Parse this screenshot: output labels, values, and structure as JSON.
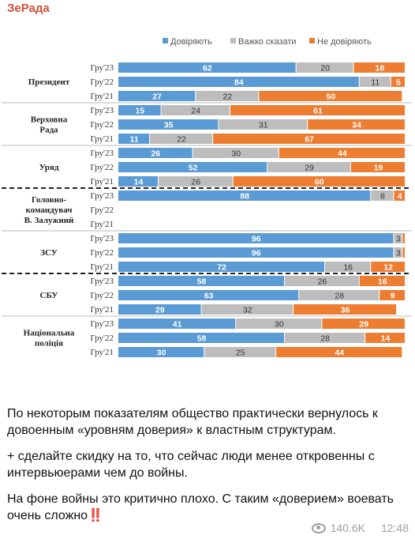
{
  "channel": "ЗеРада",
  "chart_data": {
    "type": "bar",
    "stacked": true,
    "orientation": "horizontal",
    "legend": {
      "position": "top-right",
      "items": [
        {
          "name": "Довіряють",
          "color": "#5b9bd5"
        },
        {
          "name": "Важко сказати",
          "color": "#bdbdbd"
        },
        {
          "name": "Не довіряють",
          "color": "#ed7d31"
        }
      ]
    },
    "xlim": [
      0,
      100
    ],
    "groups": [
      {
        "name": "Президент",
        "rows": [
          {
            "period": "Гру'23",
            "values": [
              62,
              20,
              18
            ]
          },
          {
            "period": "Гру'22",
            "values": [
              84,
              11,
              5
            ]
          },
          {
            "period": "Гру'21",
            "values": [
              27,
              22,
              50
            ]
          }
        ]
      },
      {
        "name": "Верховна Рада",
        "rows": [
          {
            "period": "Гру'23",
            "values": [
              15,
              24,
              61
            ]
          },
          {
            "period": "Гру'22",
            "values": [
              35,
              31,
              34
            ]
          },
          {
            "period": "Гру'21",
            "values": [
              11,
              22,
              67
            ]
          }
        ]
      },
      {
        "name": "Уряд",
        "rows": [
          {
            "period": "Гру'23",
            "values": [
              26,
              30,
              44
            ]
          },
          {
            "period": "Гру'22",
            "values": [
              52,
              29,
              19
            ]
          },
          {
            "period": "Гру'21",
            "values": [
              14,
              26,
              60
            ]
          }
        ]
      },
      {
        "name": "Головно-командувач В. Залужний",
        "rows": [
          {
            "period": "Гру'23",
            "values": [
              88,
              8,
              4
            ]
          },
          {
            "period": "Гру'22",
            "values": null
          },
          {
            "period": "Гру'21",
            "values": null
          }
        ]
      },
      {
        "name": "ЗСУ",
        "rows": [
          {
            "period": "Гру'23",
            "values": [
              96,
              3,
              1
            ]
          },
          {
            "period": "Гру'22",
            "values": [
              96,
              3,
              1
            ]
          },
          {
            "period": "Гру'21",
            "values": [
              72,
              16,
              12
            ]
          }
        ]
      },
      {
        "name": "СБУ",
        "rows": [
          {
            "period": "Гру'23",
            "values": [
              58,
              26,
              16
            ]
          },
          {
            "period": "Гру'22",
            "values": [
              63,
              28,
              9
            ]
          },
          {
            "period": "Гру'21",
            "values": [
              29,
              32,
              36
            ]
          }
        ]
      },
      {
        "name": "Національна поліція",
        "rows": [
          {
            "period": "Гру'23",
            "values": [
              41,
              30,
              29
            ]
          },
          {
            "period": "Гру'22",
            "values": [
              58,
              28,
              14
            ]
          },
          {
            "period": "Гру'21",
            "values": [
              30,
              25,
              44
            ]
          }
        ]
      }
    ]
  },
  "post": {
    "paragraph1": "По некоторым показателям общество практически вернулось к довоенным «уровням доверия» к властным структурам.",
    "paragraph2": "+ сделайте скидку на то, что сейчас люди менее откровенны с интервьюерами чем до войны.",
    "paragraph3": "На фоне войны это критично плохо. С таким «доверием» воевать очень сложно",
    "emoji": "‼️"
  },
  "meta": {
    "views": "140.6K",
    "time": "12:48"
  }
}
